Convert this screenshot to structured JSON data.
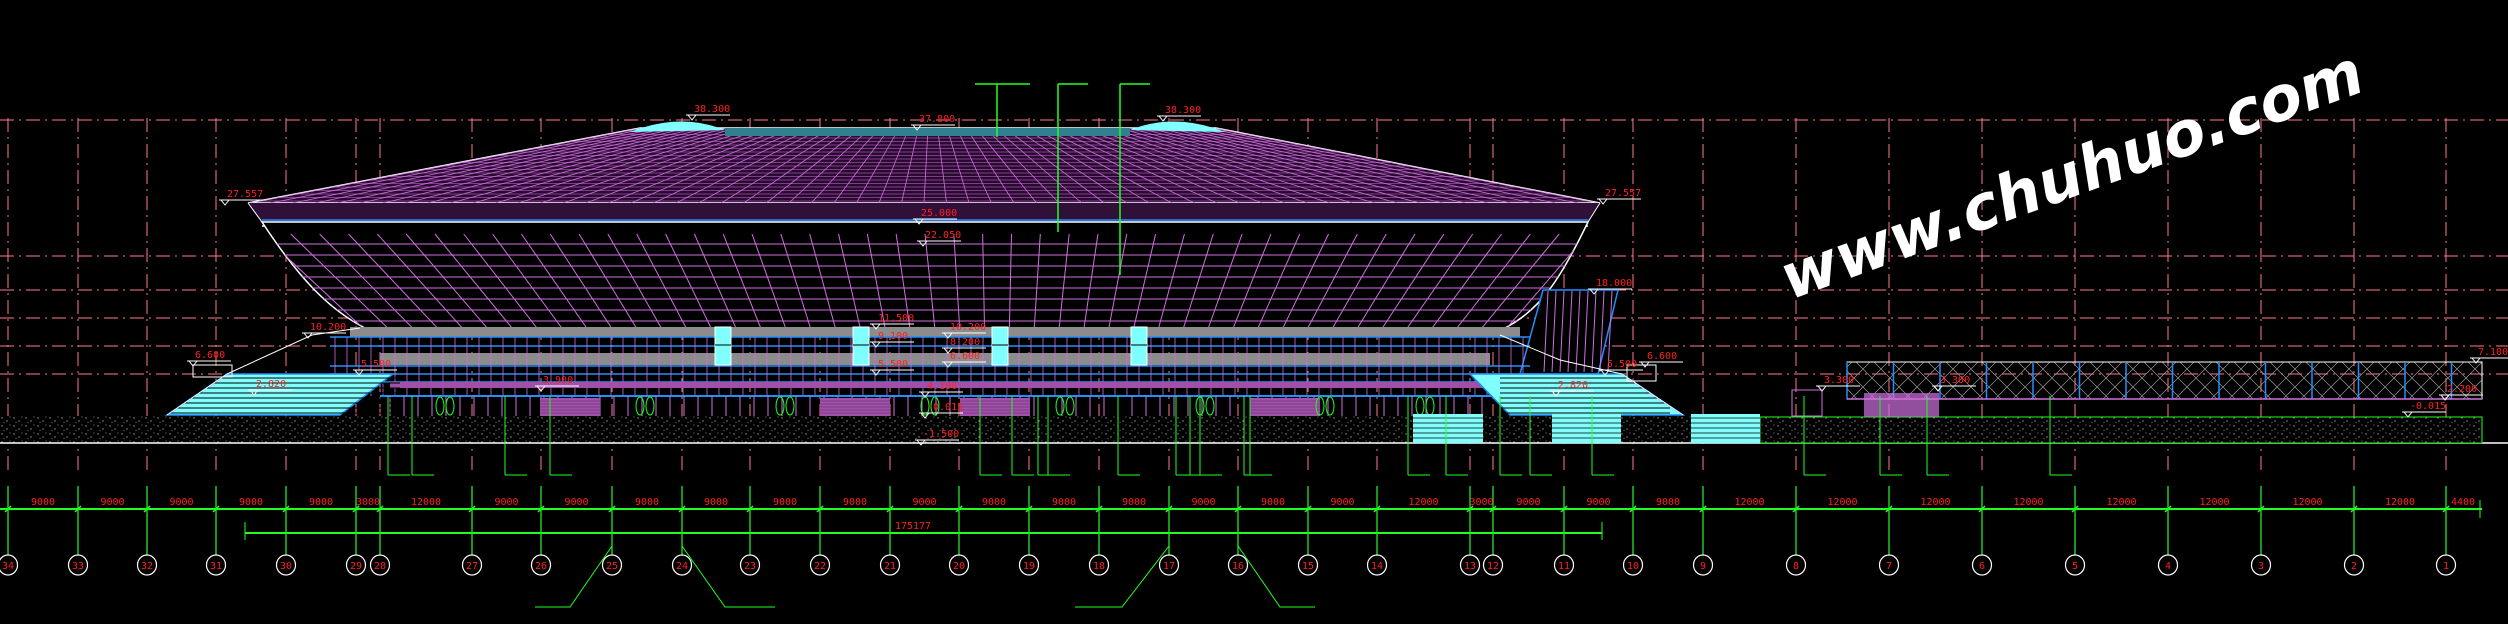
{
  "drawing": {
    "colors": {
      "background": "#000000",
      "grid_axis": "#ff7a8a",
      "roof": "#d070e0",
      "outline": "#ffffff",
      "glass": "#80ffff",
      "structure_blue": "#2090ff",
      "leader_green": "#20ff20",
      "dimension_text": "#ff2020",
      "concrete": "#8c8c8c"
    },
    "elevation_marks": [
      "38.300",
      "37.800",
      "38.300",
      "27.557",
      "27.557",
      "25.000",
      "22.050",
      "18.000",
      "11.500",
      "10.200",
      "10.200",
      "9.100",
      "8.200",
      "6.600",
      "6.600",
      "6.600",
      "5.500",
      "5.500",
      "5.500",
      "4.100",
      "3.900",
      "2.820",
      "2.820",
      "-0.015",
      "-1.500",
      "3.300",
      "3.300",
      "7.100",
      "2.200",
      "-0.015"
    ],
    "axes": [
      "34",
      "33",
      "32",
      "31",
      "30",
      "29",
      "28",
      "27",
      "26",
      "25",
      "24",
      "23",
      "22",
      "21",
      "20",
      "19",
      "18",
      "17",
      "16",
      "15",
      "14",
      "13",
      "12",
      "11",
      "10",
      "9",
      "8",
      "7",
      "6",
      "5",
      "4",
      "3",
      "2",
      "1"
    ],
    "dimensions": [
      "9000",
      "9000",
      "9000",
      "9000",
      "9000",
      "3000",
      "12000",
      "9000",
      "9000",
      "9000",
      "9000",
      "9000",
      "9000",
      "9000",
      "9000",
      "9000",
      "9000",
      "9000",
      "9000",
      "9000",
      "12000",
      "3000",
      "9000",
      "9000",
      "9000",
      "12000",
      "12000",
      "12000",
      "12000",
      "12000",
      "12000",
      "12000",
      "12000",
      "4400"
    ],
    "total_dimension": "175177",
    "watermark": "www.chuhuo.com"
  }
}
